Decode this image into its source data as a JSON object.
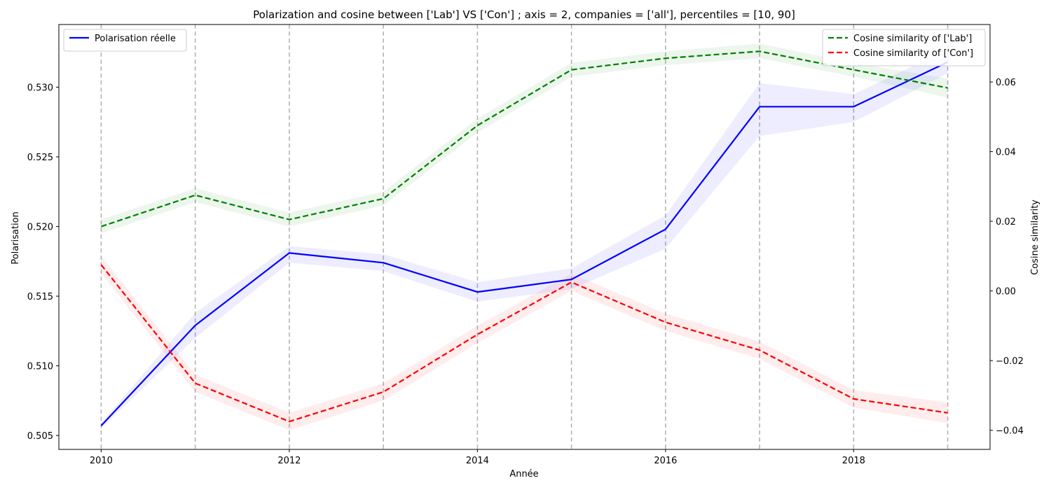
{
  "chart_data": {
    "type": "line",
    "title": "Polarization and cosine between ['Lab'] VS ['Con'] ; axis = 2, companies = ['all'], percentiles = [10, 90]",
    "xlabel": "Année",
    "ylabel_left": "Polarisation",
    "ylabel_right": "Cosine similarity",
    "x": [
      2010,
      2011,
      2012,
      2013,
      2014,
      2015,
      2016,
      2017,
      2018,
      2019
    ],
    "xlim": [
      2009.55,
      2019.45
    ],
    "xticks": [
      2010,
      2012,
      2014,
      2016,
      2018
    ],
    "ylim_left": [
      0.504,
      0.5345
    ],
    "yticks_left": [
      0.505,
      0.51,
      0.515,
      0.52,
      0.525,
      0.53
    ],
    "yticklabels_left": [
      "0.505",
      "0.510",
      "0.515",
      "0.520",
      "0.525",
      "0.530"
    ],
    "ylim_right": [
      -0.0455,
      0.0765
    ],
    "yticks_right": [
      -0.04,
      -0.02,
      0.0,
      0.02,
      0.04,
      0.06
    ],
    "yticklabels_right": [
      "−0.04",
      "−0.02",
      "0.00",
      "0.02",
      "0.04",
      "0.06"
    ],
    "vlines": [
      2010,
      2011,
      2012,
      2013,
      2014,
      2015,
      2016,
      2017,
      2018,
      2019
    ],
    "grid": false,
    "series": [
      {
        "name": "Polarisation réelle",
        "axis": "left",
        "color": "#0000ff",
        "style": "solid",
        "values": [
          0.5057,
          0.5129,
          0.5181,
          0.5174,
          0.5153,
          0.5162,
          0.5198,
          0.5286,
          0.5286,
          0.5318
        ],
        "band_low": [
          0.5055,
          0.512,
          0.5174,
          0.5168,
          0.5146,
          0.5155,
          0.5184,
          0.5265,
          0.5275,
          0.531
        ],
        "band_high": [
          0.5059,
          0.5138,
          0.5186,
          0.518,
          0.516,
          0.517,
          0.5208,
          0.5303,
          0.5295,
          0.5327
        ]
      },
      {
        "name": "Cosine similarity of ['Lab']",
        "axis": "right",
        "color": "#008000",
        "style": "dashed",
        "values": [
          0.0185,
          0.0275,
          0.0205,
          0.0265,
          0.0475,
          0.0635,
          0.0668,
          0.0688,
          0.0635,
          0.0583
        ],
        "band_low": [
          0.0165,
          0.0255,
          0.0185,
          0.0245,
          0.0455,
          0.0615,
          0.0648,
          0.0668,
          0.0615,
          0.0555
        ],
        "band_high": [
          0.0205,
          0.0295,
          0.0225,
          0.0285,
          0.0495,
          0.0655,
          0.0688,
          0.071,
          0.0655,
          0.061
        ]
      },
      {
        "name": "Cosine similarity of ['Con']",
        "axis": "right",
        "color": "#ff0000",
        "style": "dashed",
        "values": [
          0.0075,
          -0.0265,
          -0.0375,
          -0.029,
          -0.0125,
          0.0025,
          -0.009,
          -0.017,
          -0.031,
          -0.035
        ],
        "band_low": [
          0.005,
          -0.029,
          -0.04,
          -0.0315,
          -0.015,
          0.0,
          -0.0115,
          -0.0195,
          -0.0335,
          -0.038
        ],
        "band_high": [
          0.01,
          -0.024,
          -0.035,
          -0.0265,
          -0.01,
          0.005,
          -0.0065,
          -0.0145,
          -0.0285,
          -0.032
        ]
      }
    ],
    "legends": [
      {
        "position": "upper-left",
        "entries": [
          "Polarisation réelle"
        ]
      },
      {
        "position": "upper-right",
        "entries": [
          "Cosine similarity of ['Lab']",
          "Cosine similarity of ['Con']"
        ]
      }
    ]
  }
}
